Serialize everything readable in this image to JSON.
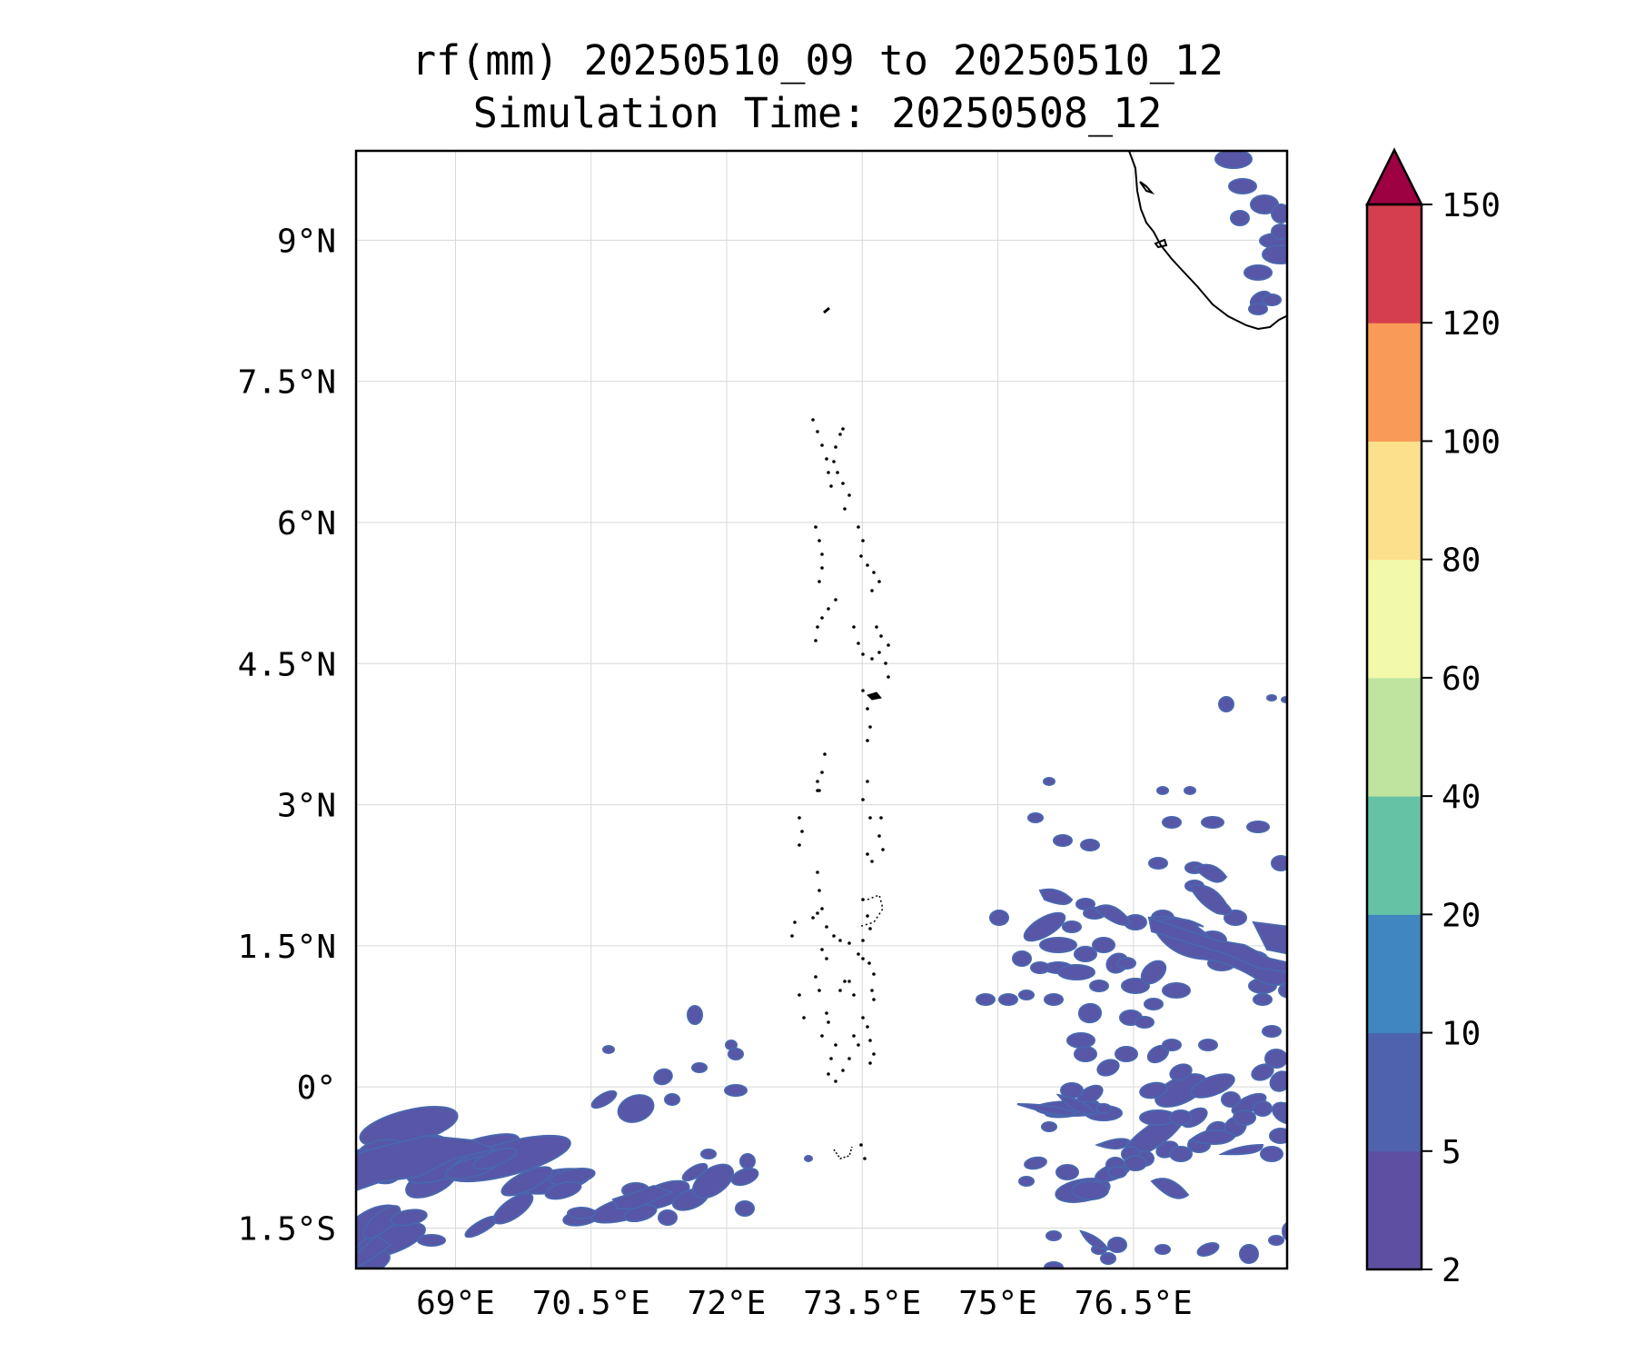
{
  "map": {
    "title": "rf(mm) 20250510_09 to 20250510_12",
    "subtitle": "Simulation Time: 20250508_12",
    "extent": {
      "lon": [
        67.9,
        78.2
      ],
      "lat": [
        -1.93,
        9.95
      ]
    },
    "x_ticks": [
      {
        "value": 69.0,
        "label": "69°E"
      },
      {
        "value": 70.5,
        "label": "70.5°E"
      },
      {
        "value": 72.0,
        "label": "72°E"
      },
      {
        "value": 73.5,
        "label": "73.5°E"
      },
      {
        "value": 75.0,
        "label": "75°E"
      },
      {
        "value": 76.5,
        "label": "76.5°E"
      }
    ],
    "y_ticks": [
      {
        "value": 9.0,
        "label": "9°N"
      },
      {
        "value": 7.5,
        "label": "7.5°N"
      },
      {
        "value": 6.0,
        "label": "6°N"
      },
      {
        "value": 4.5,
        "label": "4.5°N"
      },
      {
        "value": 3.0,
        "label": "3°N"
      },
      {
        "value": 1.5,
        "label": "1.5°N"
      },
      {
        "value": 0.0,
        "label": "0°"
      },
      {
        "value": -1.5,
        "label": "1.5°S"
      }
    ],
    "gridlines": true
  },
  "colorbar": {
    "levels": [
      "2",
      "5",
      "10",
      "20",
      "40",
      "60",
      "80",
      "100",
      "120",
      "150"
    ],
    "colors": [
      "#5e4fa2",
      "#4f63ad",
      "#3f87be",
      "#66c2a5",
      "#bee4a0",
      "#f2f9ab",
      "#fde08b",
      "#f99b57",
      "#d53e4f"
    ],
    "extend_color": "#9e0142",
    "extend": "max"
  },
  "rain_color": "#5856a6",
  "rain_edge": "#4a66ae",
  "coast_color": "#000000"
}
